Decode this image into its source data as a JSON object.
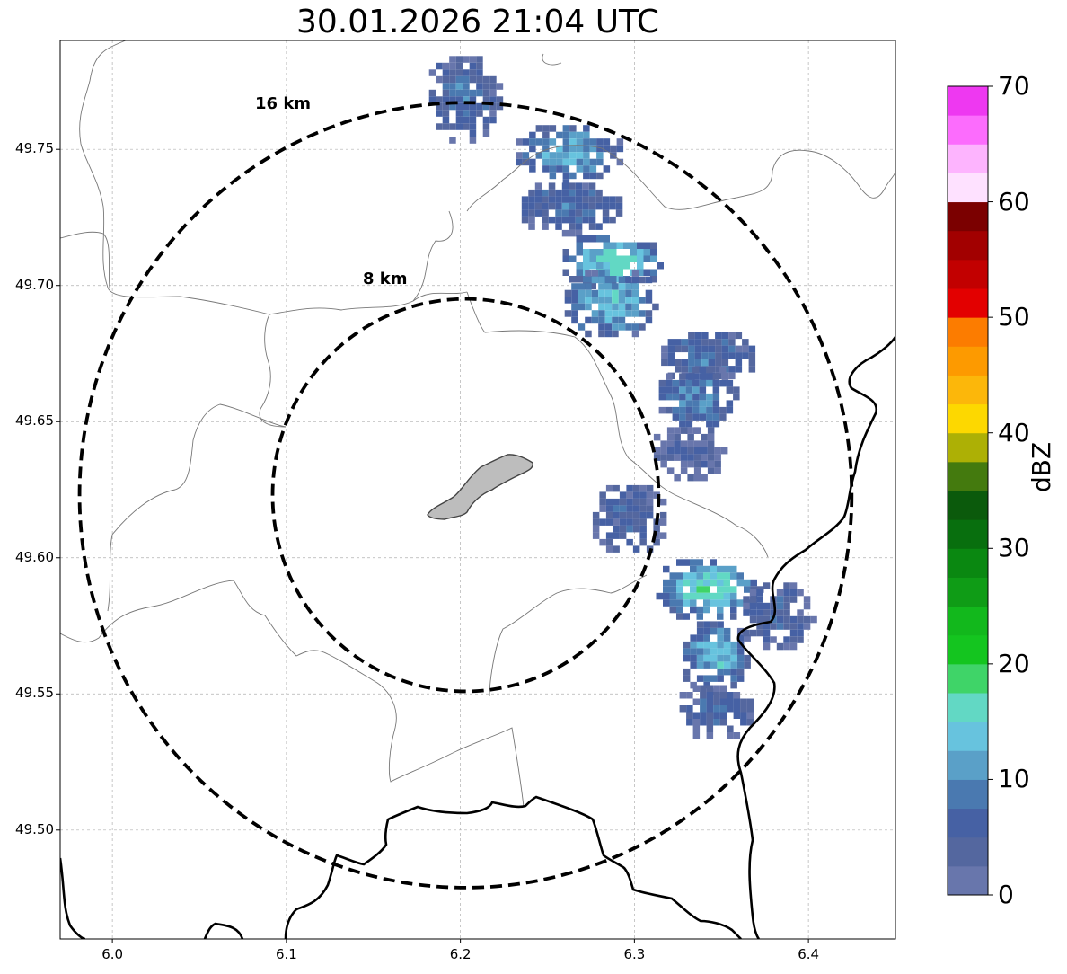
{
  "title": "30.01.2026 21:04 UTC",
  "axes": {
    "x_ticks": [
      "6.0",
      "6.1",
      "6.2",
      "6.3",
      "6.4"
    ],
    "y_ticks": [
      "49.75",
      "49.70",
      "49.65",
      "49.60",
      "49.55",
      "49.50"
    ],
    "x_range": [
      5.97,
      6.45
    ],
    "y_range": [
      49.46,
      49.79
    ]
  },
  "rings": [
    {
      "label": "16 km",
      "radius_km": 16
    },
    {
      "label": "8 km",
      "radius_km": 8
    }
  ],
  "colorbar": {
    "label": "dBZ",
    "ticks": [
      "0",
      "10",
      "20",
      "30",
      "40",
      "50",
      "60",
      "70"
    ],
    "range": [
      0,
      70
    ],
    "colors": [
      "#6876ac",
      "#54679f",
      "#4661a4",
      "#4a79b0",
      "#5aa0c8",
      "#67c3de",
      "#62d8c4",
      "#3fd468",
      "#14c51f",
      "#12b81c",
      "#0f9c16",
      "#0a8811",
      "#086f0e",
      "#0b5a0c",
      "#447a0e",
      "#adb005",
      "#fdd800",
      "#fcb70a",
      "#fd9a00",
      "#fc7c00",
      "#e30000",
      "#c20000",
      "#a20000",
      "#7b0000",
      "#fee1ff",
      "#fdb4fe",
      "#fc6cfd",
      "#ee38f1"
    ]
  },
  "chart_data": {
    "type": "heatmap",
    "title": "30.01.2026 21:04 UTC",
    "xlim": [
      5.97,
      6.45
    ],
    "ylim": [
      49.46,
      49.79
    ],
    "x_ticks": [
      6.0,
      6.1,
      6.2,
      6.3,
      6.4
    ],
    "y_ticks": [
      49.5,
      49.55,
      49.6,
      49.65,
      49.7,
      49.75
    ],
    "center": [
      6.203,
      49.623
    ],
    "grid": true,
    "colorbar": {
      "label": "dBZ",
      "min": 0,
      "max": 70
    },
    "echo_regions": [
      {
        "lon": 6.2,
        "lat": 49.77,
        "dbz": 8
      },
      {
        "lon": 6.26,
        "lat": 49.75,
        "dbz": 12
      },
      {
        "lon": 6.26,
        "lat": 49.73,
        "dbz": 8
      },
      {
        "lon": 6.285,
        "lat": 49.71,
        "dbz": 16
      },
      {
        "lon": 6.285,
        "lat": 49.695,
        "dbz": 14
      },
      {
        "lon": 6.34,
        "lat": 49.675,
        "dbz": 8
      },
      {
        "lon": 6.335,
        "lat": 49.66,
        "dbz": 10
      },
      {
        "lon": 6.33,
        "lat": 49.64,
        "dbz": 4
      },
      {
        "lon": 6.295,
        "lat": 49.615,
        "dbz": 6
      },
      {
        "lon": 6.34,
        "lat": 49.59,
        "dbz": 16
      },
      {
        "lon": 6.345,
        "lat": 49.565,
        "dbz": 13
      },
      {
        "lon": 6.345,
        "lat": 49.545,
        "dbz": 6
      },
      {
        "lon": 6.38,
        "lat": 49.58,
        "dbz": 6
      }
    ]
  }
}
